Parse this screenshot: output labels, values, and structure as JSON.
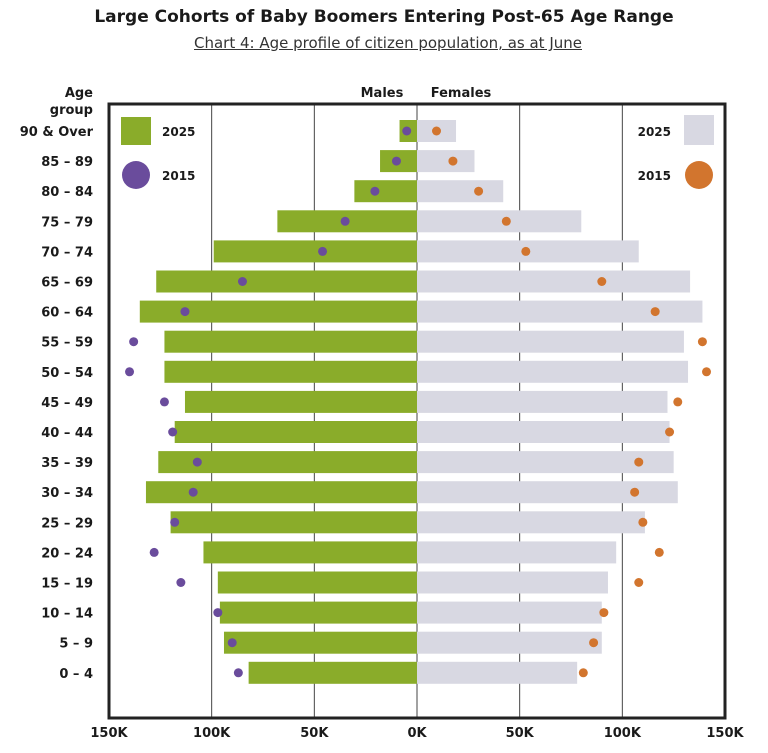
{
  "title": "Large Cohorts of Baby Boomers Entering Post-65 Age Range",
  "subtitle": "Chart 4: Age profile of citizen population, as at June",
  "colors": {
    "male_2025": "#8aac2a",
    "female_2025": "#d8d8e2",
    "male_2015": "#6a4c9c",
    "female_2015": "#d2752e",
    "grid": "#222222",
    "text": "#1a1a1a"
  },
  "chart_data": {
    "type": "population-pyramid",
    "title": "Large Cohorts of Baby Boomers Entering Post-65 Age Range",
    "subtitle": "Chart 4: Age profile of citizen population, as at June",
    "y_axis_title": [
      "Age",
      "group"
    ],
    "side_labels": {
      "left": "Males",
      "right": "Females"
    },
    "xlim": [
      -150000,
      150000
    ],
    "xticks": [
      -150000,
      -100000,
      -50000,
      0,
      50000,
      100000,
      150000
    ],
    "xtick_labels": [
      "150K",
      "100K",
      "50K",
      "0K",
      "50K",
      "100K",
      "150K"
    ],
    "categories": [
      "90 & Over",
      "85 – 89",
      "80 – 84",
      "75 – 79",
      "70 – 74",
      "65 – 69",
      "60 – 64",
      "55 – 59",
      "50 – 54",
      "45 – 49",
      "40 – 44",
      "35 – 39",
      "30 – 34",
      "25 – 29",
      "20 – 24",
      "15 – 19",
      "10 – 14",
      "5 – 9",
      "0 – 4"
    ],
    "legend": {
      "male_2025": "2025",
      "male_2015": "2015",
      "female_2025": "2025",
      "female_2015": "2015"
    },
    "series": [
      {
        "name": "Males 2025",
        "mark": "bar",
        "side": "left",
        "values": [
          8500,
          18000,
          30500,
          68000,
          99000,
          127000,
          135000,
          123000,
          123000,
          113000,
          118000,
          126000,
          132000,
          120000,
          104000,
          97000,
          96000,
          94000,
          82000
        ]
      },
      {
        "name": "Males 2015",
        "mark": "dot",
        "side": "left",
        "values": [
          5000,
          10000,
          20500,
          35000,
          46000,
          85000,
          113000,
          138000,
          140000,
          123000,
          119000,
          107000,
          109000,
          118000,
          128000,
          115000,
          97000,
          90000,
          87000
        ]
      },
      {
        "name": "Females 2025",
        "mark": "bar",
        "side": "right",
        "values": [
          19000,
          28000,
          42000,
          80000,
          108000,
          133000,
          139000,
          130000,
          132000,
          122000,
          123000,
          125000,
          127000,
          111000,
          97000,
          93000,
          90000,
          90000,
          78000
        ]
      },
      {
        "name": "Females 2015",
        "mark": "dot",
        "side": "right",
        "values": [
          9500,
          17500,
          30000,
          43500,
          53000,
          90000,
          116000,
          139000,
          141000,
          127000,
          123000,
          108000,
          106000,
          110000,
          118000,
          108000,
          91000,
          86000,
          81000
        ]
      }
    ]
  }
}
